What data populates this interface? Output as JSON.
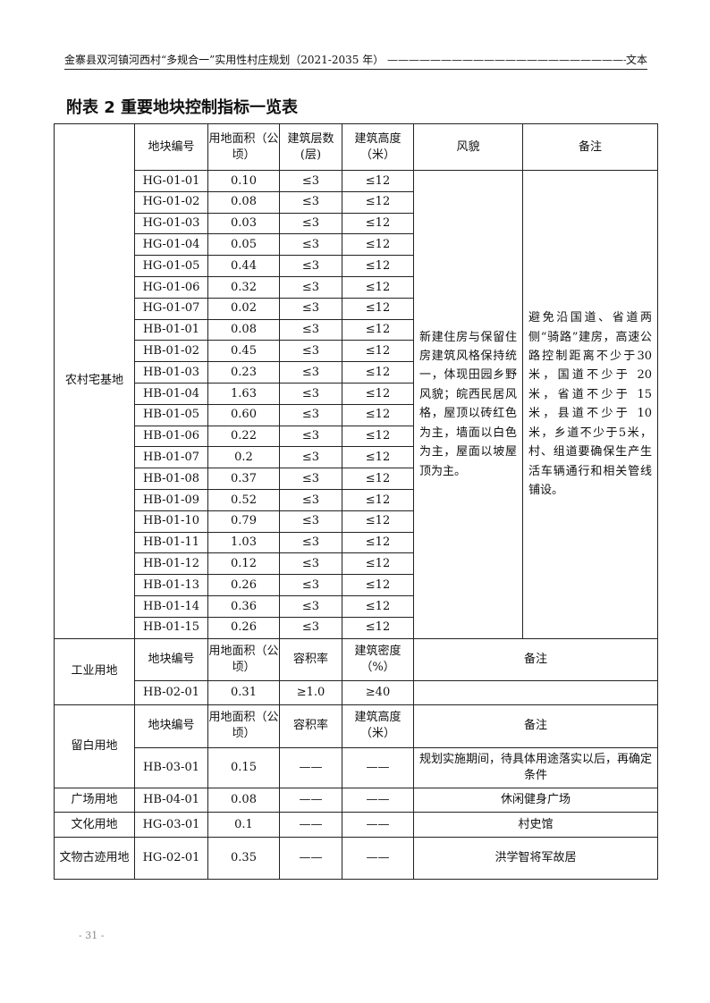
{
  "header": {
    "left": "金寨县双河镇河西村“多规合一”实用性村庄规划（2021-2035 年）",
    "right": "文本"
  },
  "title": "附表 2  重要地块控制指标一览表",
  "residential": {
    "category": "农村宅基地",
    "headers": [
      "地块编号",
      "用地面积（公顷）",
      "建筑层数(层)",
      "建筑高度（米）",
      "风貌",
      "备注"
    ],
    "rows": [
      [
        "HG-01-01",
        "0.10",
        "≤3",
        "≤12"
      ],
      [
        "HG-01-02",
        "0.08",
        "≤3",
        "≤12"
      ],
      [
        "HG-01-03",
        "0.03",
        "≤3",
        "≤12"
      ],
      [
        "HG-01-04",
        "0.05",
        "≤3",
        "≤12"
      ],
      [
        "HG-01-05",
        "0.44",
        "≤3",
        "≤12"
      ],
      [
        "HG-01-06",
        "0.32",
        "≤3",
        "≤12"
      ],
      [
        "HG-01-07",
        "0.02",
        "≤3",
        "≤12"
      ],
      [
        "HB-01-01",
        "0.08",
        "≤3",
        "≤12"
      ],
      [
        "HB-01-02",
        "0.45",
        "≤3",
        "≤12"
      ],
      [
        "HB-01-03",
        "0.23",
        "≤3",
        "≤12"
      ],
      [
        "HB-01-04",
        "1.63",
        "≤3",
        "≤12"
      ],
      [
        "HB-01-05",
        "0.60",
        "≤3",
        "≤12"
      ],
      [
        "HB-01-06",
        "0.22",
        "≤3",
        "≤12"
      ],
      [
        "HB-01-07",
        "0.2",
        "≤3",
        "≤12"
      ],
      [
        "HB-01-08",
        "0.37",
        "≤3",
        "≤12"
      ],
      [
        "HB-01-09",
        "0.52",
        "≤3",
        "≤12"
      ],
      [
        "HB-01-10",
        "0.79",
        "≤3",
        "≤12"
      ],
      [
        "HB-01-11",
        "1.03",
        "≤3",
        "≤12"
      ],
      [
        "HB-01-12",
        "0.12",
        "≤3",
        "≤12"
      ],
      [
        "HB-01-13",
        "0.26",
        "≤3",
        "≤12"
      ],
      [
        "HB-01-14",
        "0.36",
        "≤3",
        "≤12"
      ],
      [
        "HB-01-15",
        "0.26",
        "≤3",
        "≤12"
      ]
    ],
    "style": "新建住房与保留住房建筑风格保持统一，体现田园乡野风貌；皖西民居风格，屋顶以砖红色为主，墙面以白色为主，屋面以坡屋顶为主。",
    "note": "避免沿国道、省道两侧“骑路”建房，高速公路控制距离不少于30米，国道不少于 20 米，省道不少于 15 米，县道不少于 10 米，乡道不少于5米，村、组道要确保生产生活车辆通行和相关管线铺设。"
  },
  "industrial": {
    "category": "工业用地",
    "headers": [
      "地块编号",
      "用地面积（公顷）",
      "容积率",
      "建筑密度（%）",
      "备注"
    ],
    "row": [
      "HB-02-01",
      "0.31",
      "≥1.0",
      "≥40",
      ""
    ]
  },
  "reserved": {
    "category": "留白用地",
    "headers": [
      "地块编号",
      "用地面积（公顷）",
      "容积率",
      "建筑高度（米）",
      "备注"
    ],
    "row": [
      "HB-03-01",
      "0.15",
      "——",
      "——",
      "规划实施期间，待具体用途落实以后，再确定条件"
    ]
  },
  "others": [
    {
      "category": "广场用地",
      "row": [
        "HB-04-01",
        "0.08",
        "——",
        "——",
        "休闲健身广场"
      ]
    },
    {
      "category": "文化用地",
      "row": [
        "HG-03-01",
        "0.1",
        "——",
        "——",
        "村史馆"
      ]
    },
    {
      "category": "文物古迹用地",
      "row": [
        "HG-02-01",
        "0.35",
        "——",
        "——",
        "洪学智将军故居"
      ]
    }
  ],
  "footer": "- 31 -"
}
